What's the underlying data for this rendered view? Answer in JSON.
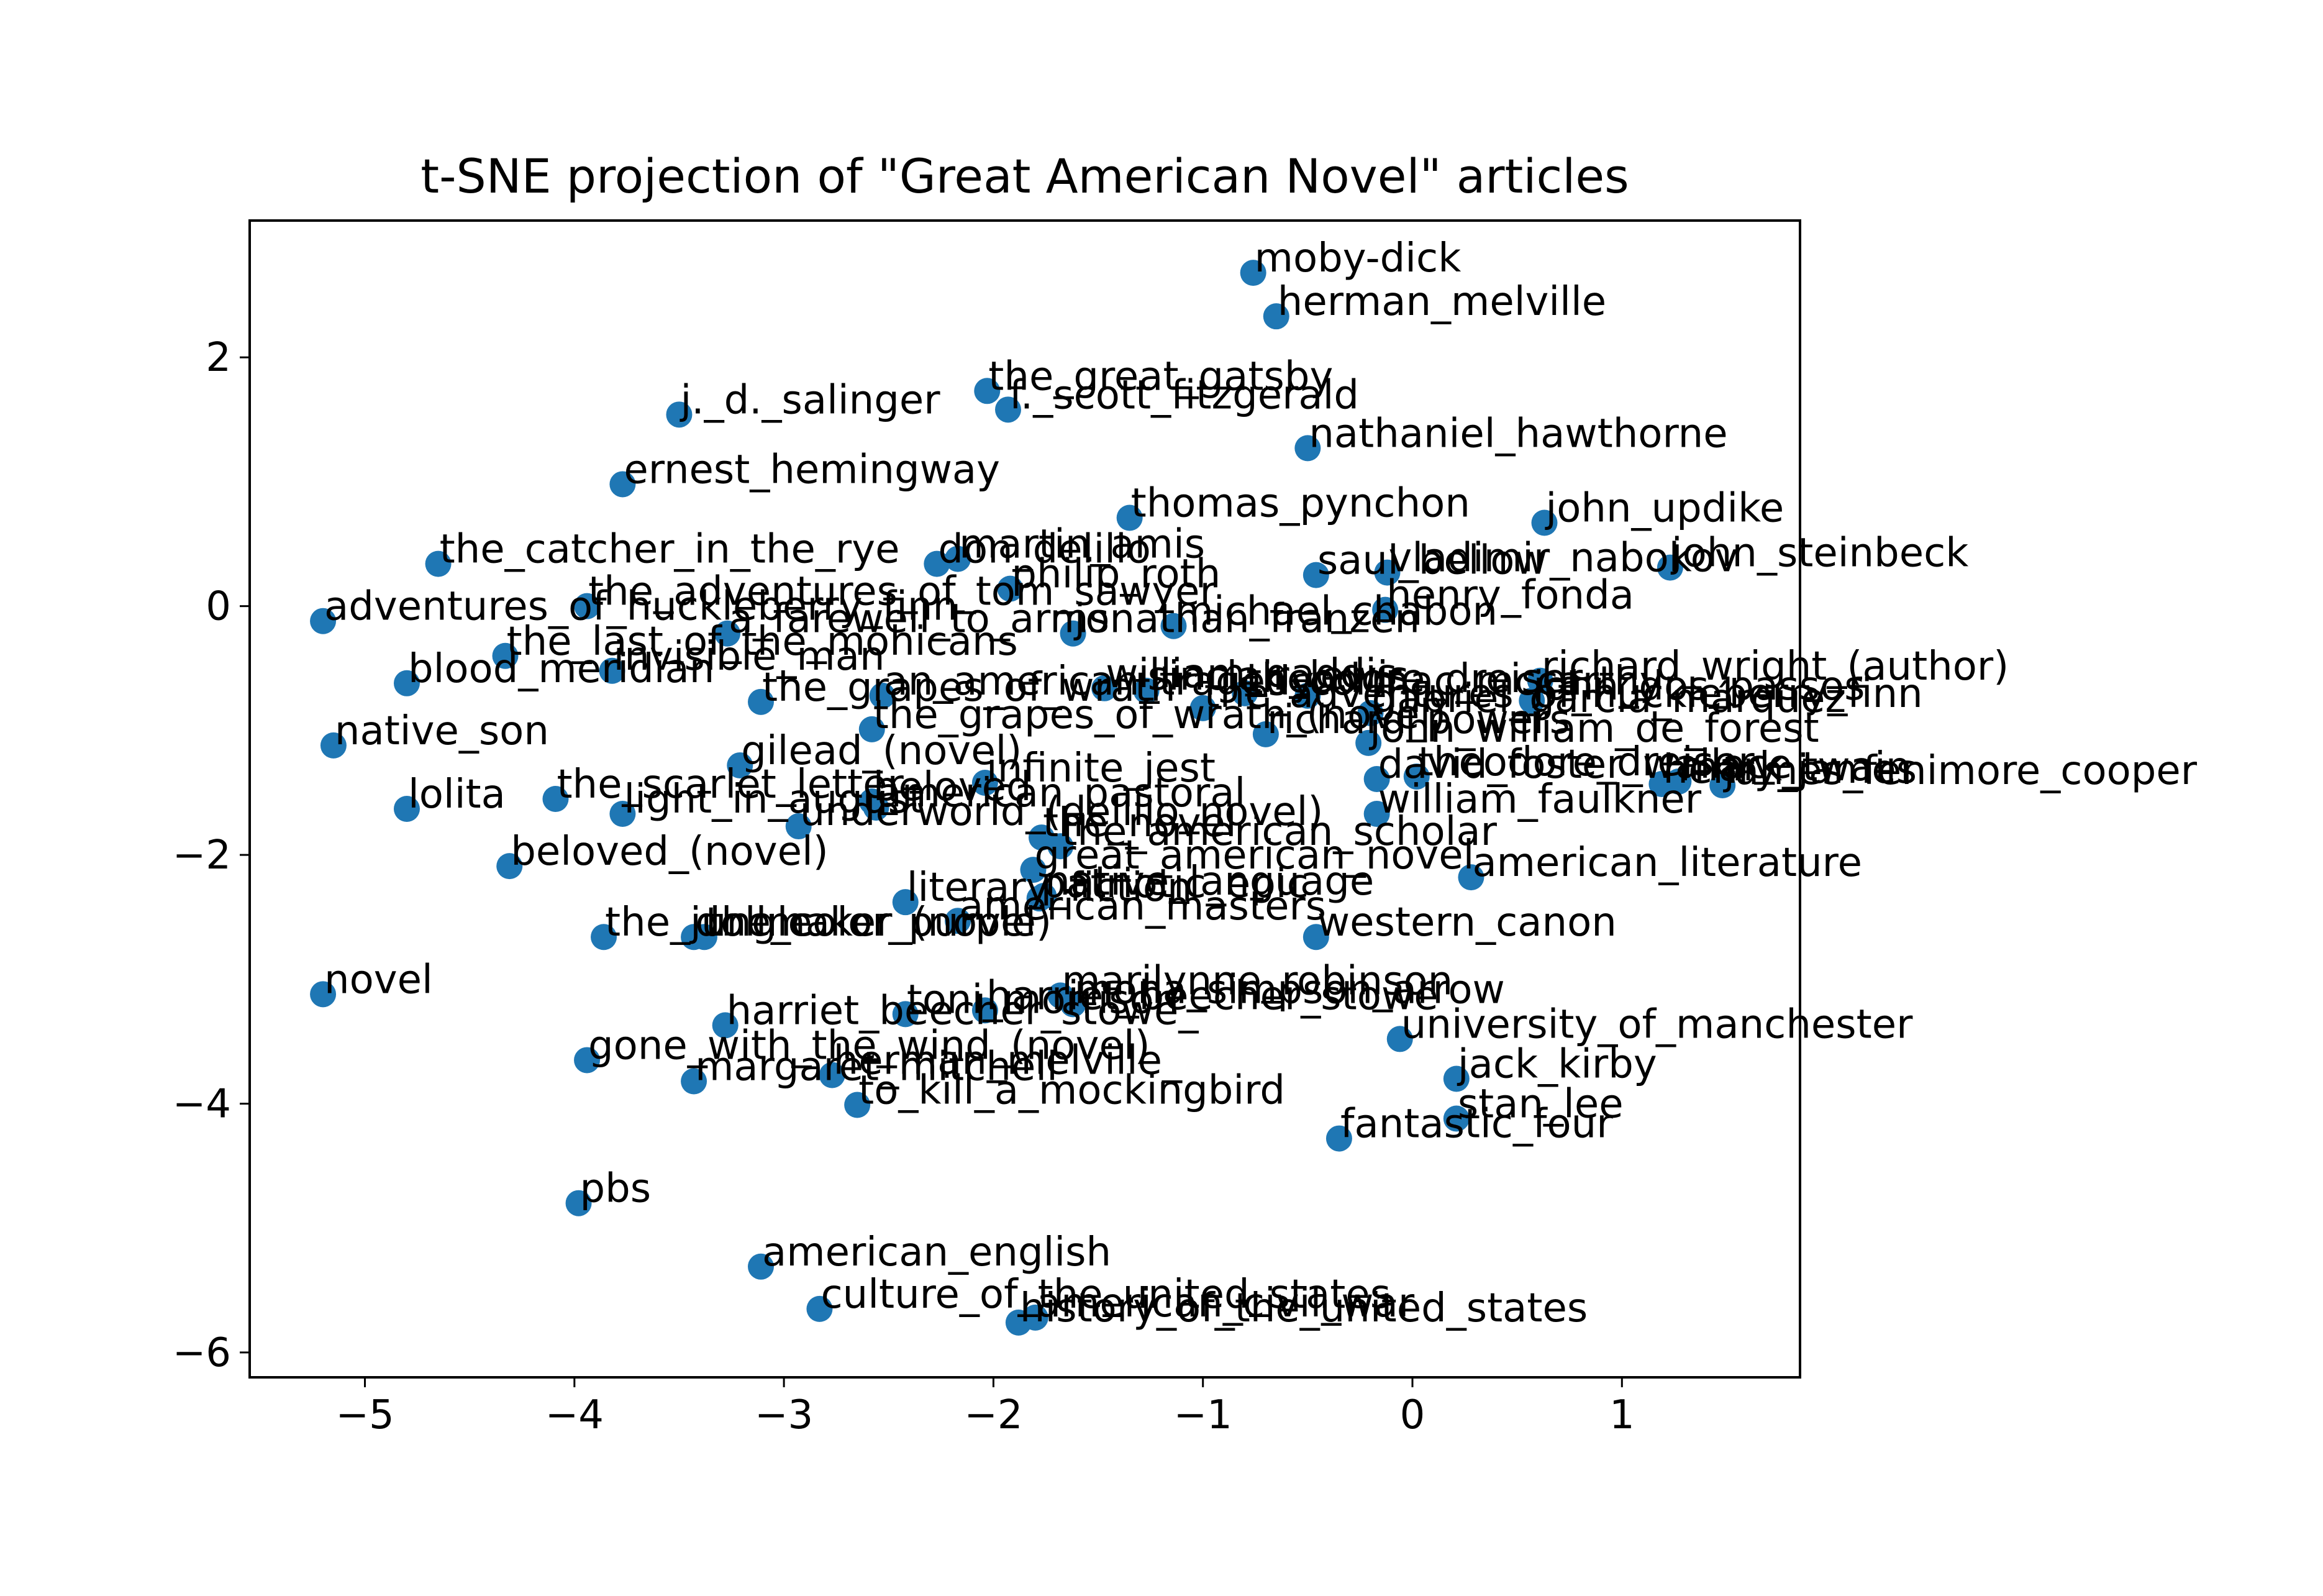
{
  "chart_data": {
    "type": "scatter",
    "title": "t-SNE projection of \"Great American Novel\" articles",
    "xlabel": "",
    "ylabel": "",
    "xlim": [
      -5.55,
      1.85
    ],
    "ylim": [
      -6.2,
      3.1
    ],
    "xticks": [
      -5,
      -4,
      -3,
      -2,
      -1,
      0,
      1
    ],
    "yticks": [
      -6,
      -4,
      -2,
      0,
      2
    ],
    "xtick_labels": [
      "−5",
      "−4",
      "−3",
      "−2",
      "−1",
      "0",
      "1"
    ],
    "ytick_labels": [
      "−6",
      "−4",
      "−2",
      "0",
      "2"
    ],
    "grid": false,
    "marker_color": "#1f77b4",
    "points": [
      {
        "label": "moby-dick",
        "x": -0.76,
        "y": 2.68
      },
      {
        "label": "herman_melville",
        "x": -0.65,
        "y": 2.33
      },
      {
        "label": "the_great_gatsby",
        "x": -2.03,
        "y": 1.73
      },
      {
        "label": "f._scott_fitzgerald",
        "x": -1.93,
        "y": 1.58
      },
      {
        "label": "j._d._salinger",
        "x": -3.5,
        "y": 1.54
      },
      {
        "label": "nathaniel_hawthorne",
        "x": -0.5,
        "y": 1.27
      },
      {
        "label": "ernest_hemingway",
        "x": -3.77,
        "y": 0.98
      },
      {
        "label": "thomas_pynchon",
        "x": -1.35,
        "y": 0.71
      },
      {
        "label": "john_updike",
        "x": 0.63,
        "y": 0.67
      },
      {
        "label": "the_catcher_in_the_rye",
        "x": -4.65,
        "y": 0.34
      },
      {
        "label": "martin_amis",
        "x": -2.17,
        "y": 0.38
      },
      {
        "label": "don_delillo",
        "x": -2.27,
        "y": 0.34
      },
      {
        "label": "vladimir_nabokov",
        "x": -0.12,
        "y": 0.27
      },
      {
        "label": "john_steinbeck",
        "x": 1.23,
        "y": 0.31
      },
      {
        "label": "saul_bellow",
        "x": -0.46,
        "y": 0.25
      },
      {
        "label": "philip_roth",
        "x": -1.92,
        "y": 0.14
      },
      {
        "label": "the_adventures_of_tom_sawyer",
        "x": -3.94,
        "y": 0.0
      },
      {
        "label": "henry_fonda",
        "x": -0.13,
        "y": -0.03
      },
      {
        "label": "adventures_of_huckleberry_finn",
        "x": -5.2,
        "y": -0.12
      },
      {
        "label": "a_farewell_to_arms",
        "x": -3.27,
        "y": -0.22
      },
      {
        "label": "michael_chabon",
        "x": -1.14,
        "y": -0.16
      },
      {
        "label": "jonathan_franzen",
        "x": -1.62,
        "y": -0.22
      },
      {
        "label": "the_last_of_the_mohicans",
        "x": -4.33,
        "y": -0.4
      },
      {
        "label": "invisible_man",
        "x": -3.82,
        "y": -0.52
      },
      {
        "label": "blood_meridian",
        "x": -4.8,
        "y": -0.62
      },
      {
        "label": "richard_wright_(author)",
        "x": 0.61,
        "y": -0.6
      },
      {
        "label": "an_american_tragedy",
        "x": -2.53,
        "y": -0.72
      },
      {
        "label": "william_gaddis",
        "x": -1.47,
        "y": -0.66
      },
      {
        "label": "the_grapes_of_wrath",
        "x": -3.11,
        "y": -0.77
      },
      {
        "label": "sinclair_lewis",
        "x": -1.27,
        "y": -0.68
      },
      {
        "label": "theodore_dreiser",
        "x": -0.8,
        "y": -0.7
      },
      {
        "label": "cormac_mccarthy",
        "x": -0.5,
        "y": -0.72
      },
      {
        "label": "john_dos_passos",
        "x": 0.57,
        "y": -0.76
      },
      {
        "label": "the_adventures_of_huckleberry_finn",
        "x": -1.0,
        "y": -0.82
      },
      {
        "label": "gabriel_garcía_márquez",
        "x": -0.2,
        "y": -0.86
      },
      {
        "label": "native_son",
        "x": -5.15,
        "y": -1.12
      },
      {
        "label": "the_grapes_of_wrath_(novel)",
        "x": -2.58,
        "y": -0.99
      },
      {
        "label": "richard_powers",
        "x": -0.7,
        "y": -1.03
      },
      {
        "label": "john_william_de_forest",
        "x": -0.21,
        "y": -1.1
      },
      {
        "label": "gilead_(novel)",
        "x": -3.21,
        "y": -1.28
      },
      {
        "label": "infinite_jest",
        "x": -2.04,
        "y": -1.42
      },
      {
        "label": "david_foster_wallace",
        "x": -0.17,
        "y": -1.39
      },
      {
        "label": "theodore_dreiser_",
        "x": 0.02,
        "y": -1.37
      },
      {
        "label": "henry_james",
        "x": 1.19,
        "y": -1.43
      },
      {
        "label": "mark_twain",
        "x": 1.27,
        "y": -1.41
      },
      {
        "label": "james_fenimore_cooper",
        "x": 1.48,
        "y": -1.44
      },
      {
        "label": "lolita",
        "x": -4.8,
        "y": -1.63
      },
      {
        "label": "the_scarlet_letter",
        "x": -4.09,
        "y": -1.55
      },
      {
        "label": "light_in_august",
        "x": -3.77,
        "y": -1.67
      },
      {
        "label": "beloved",
        "x": -2.58,
        "y": -1.57
      },
      {
        "label": "american_pastoral",
        "x": -2.56,
        "y": -1.62
      },
      {
        "label": "william_faulkner",
        "x": -0.17,
        "y": -1.67
      },
      {
        "label": "underworld_(delillo_novel)",
        "x": -2.93,
        "y": -1.77
      },
      {
        "label": "the_novel",
        "x": -1.77,
        "y": -1.86
      },
      {
        "label": "the_american_scholar",
        "x": -1.68,
        "y": -1.93
      },
      {
        "label": "beloved_(novel)",
        "x": -4.31,
        "y": -2.09
      },
      {
        "label": "great_american_novel",
        "x": -1.81,
        "y": -2.12
      },
      {
        "label": "american_literature",
        "x": 0.28,
        "y": -2.18
      },
      {
        "label": "literary_fiction",
        "x": -2.42,
        "y": -2.38
      },
      {
        "label": "patriotic_epic",
        "x": -1.78,
        "y": -2.35
      },
      {
        "label": "native_language",
        "x": -1.76,
        "y": -2.33
      },
      {
        "label": "american_masters",
        "x": -2.17,
        "y": -2.53
      },
      {
        "label": "western_canon",
        "x": -0.46,
        "y": -2.66
      },
      {
        "label": "the_jungle",
        "x": -3.86,
        "y": -2.66
      },
      {
        "label": "dollmaker_(novel)",
        "x": -3.43,
        "y": -2.66
      },
      {
        "label": "the_color_purple",
        "x": -3.38,
        "y": -2.66
      },
      {
        "label": "marilynne_robinson",
        "x": -1.68,
        "y": -3.13
      },
      {
        "label": "toni_morrison",
        "x": -2.42,
        "y": -3.28
      },
      {
        "label": "harriet_beecher_stowe",
        "x": -2.04,
        "y": -3.25
      },
      {
        "label": "mona_simpson_arrow",
        "x": -1.62,
        "y": -3.2
      },
      {
        "label": "novel",
        "x": -5.2,
        "y": -3.12
      },
      {
        "label": "gone_with_the_wind_(novel)",
        "x": -3.94,
        "y": -3.65
      },
      {
        "label": "harriet_beecher_stowe_",
        "x": -3.28,
        "y": -3.37
      },
      {
        "label": "university_of_manchester",
        "x": -0.06,
        "y": -3.48
      },
      {
        "label": "margaret_mitchell",
        "x": -3.43,
        "y": -3.82
      },
      {
        "label": "herman_melville_",
        "x": -2.77,
        "y": -3.77
      },
      {
        "label": "jack_kirby",
        "x": 0.21,
        "y": -3.8
      },
      {
        "label": "to_kill_a_mockingbird",
        "x": -2.65,
        "y": -4.01
      },
      {
        "label": "stan_lee",
        "x": 0.21,
        "y": -4.12
      },
      {
        "label": "fantastic_four",
        "x": -0.35,
        "y": -4.28
      },
      {
        "label": "pbs",
        "x": -3.98,
        "y": -4.8
      },
      {
        "label": "american_english",
        "x": -3.11,
        "y": -5.31
      },
      {
        "label": "culture_of_the_united_states",
        "x": -2.83,
        "y": -5.65
      },
      {
        "label": "american_civil_war",
        "x": -1.8,
        "y": -5.72
      },
      {
        "label": "history_of_the_united_states",
        "x": -1.88,
        "y": -5.76
      }
    ]
  }
}
